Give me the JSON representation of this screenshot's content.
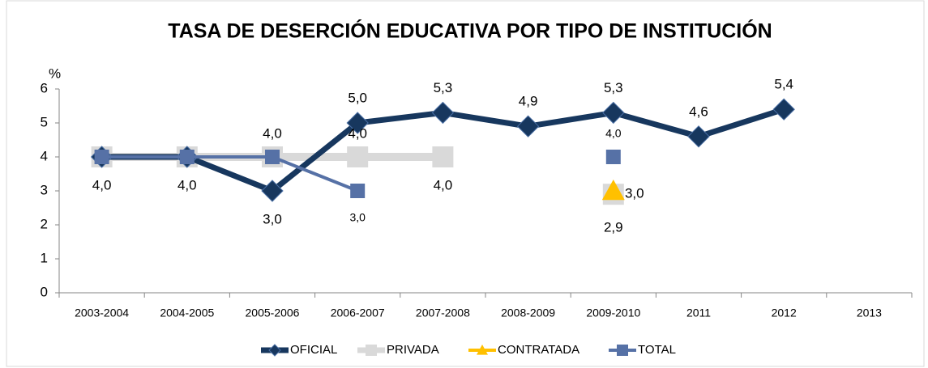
{
  "chart_data": {
    "type": "line",
    "title": "TASA DE DESERCIÓN EDUCATIVA POR TIPO DE INSTITUCIÓN",
    "y_label": "%",
    "categories": [
      "2003-2004",
      "2004-2005",
      "2005-2006",
      "2006-2007",
      "2007-2008",
      "2008-2009",
      "2009-2010",
      "2011",
      "2012",
      "2013"
    ],
    "series": [
      {
        "name": "OFICIAL",
        "color": "#17375e",
        "values": [
          4,
          4,
          3,
          5,
          5.3,
          4.9,
          5.3,
          4.6,
          5.4,
          null
        ],
        "value_labels": [
          "4,0",
          "4,0",
          "3,0",
          "5,0",
          "5,3",
          "4,9",
          "5,3",
          "4,6",
          "5,4",
          null
        ]
      },
      {
        "name": "PRIVADA",
        "color": "#d9d9d9",
        "values": [
          4,
          4,
          4,
          4,
          4,
          null,
          2.9,
          null,
          null,
          null
        ],
        "value_labels": [
          null,
          null,
          null,
          "4,0",
          "4,0",
          null,
          "2,9",
          null,
          null,
          null
        ]
      },
      {
        "name": "CONTRATADA",
        "color": "#ffc000",
        "values": [
          null,
          null,
          null,
          null,
          null,
          null,
          3,
          null,
          null,
          null
        ],
        "value_labels": [
          null,
          null,
          null,
          null,
          null,
          null,
          "3,0",
          null,
          null,
          null
        ]
      },
      {
        "name": "TOTAL",
        "color": "#5671a6",
        "values": [
          4,
          4,
          4,
          3,
          null,
          null,
          4,
          null,
          null,
          null
        ],
        "value_labels": [
          null,
          null,
          "4,0",
          "3,0",
          null,
          null,
          "4,0",
          null,
          null,
          null
        ]
      }
    ],
    "ylim": [
      0,
      6
    ],
    "yticks": [
      0,
      1,
      2,
      3,
      4,
      5,
      6
    ],
    "legend": "bottom"
  }
}
